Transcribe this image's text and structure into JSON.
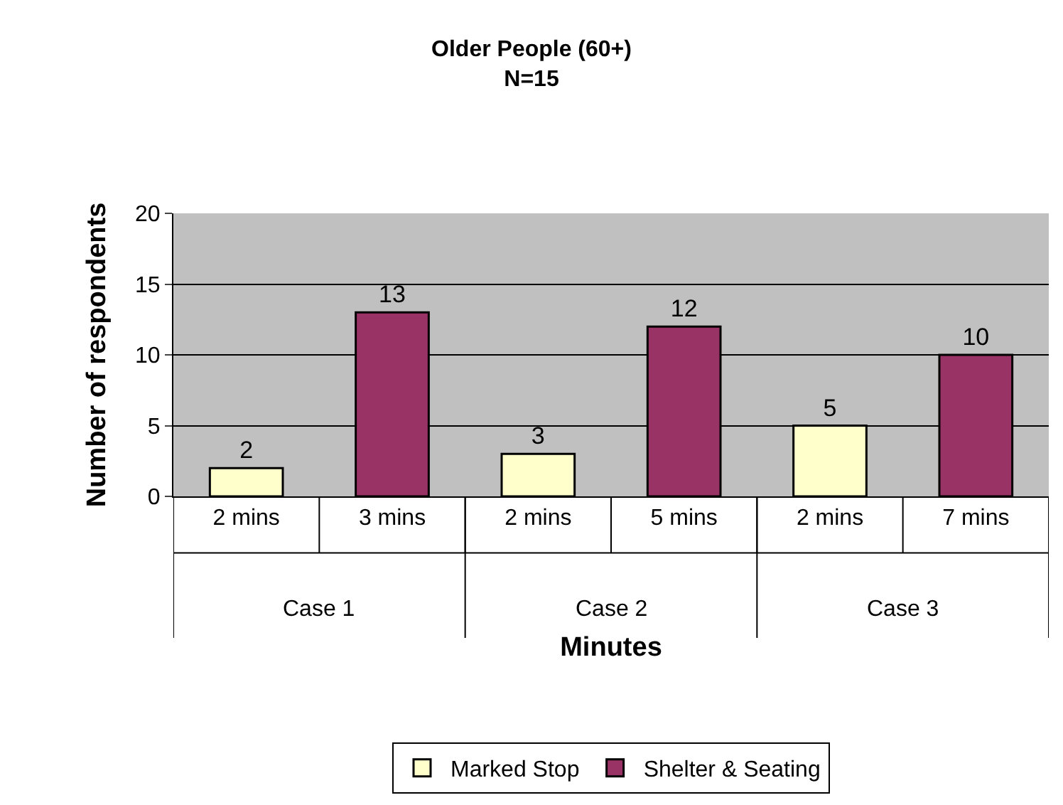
{
  "chart_data": {
    "type": "bar",
    "title": "Older People (60+)\nN=15",
    "xlabel": "Minutes",
    "ylabel": "Number of respondents",
    "categories": [
      "2 mins",
      "3 mins",
      "2 mins",
      "5 mins",
      "2 mins",
      "7 mins"
    ],
    "series": [
      {
        "name": "Marked Stop",
        "color": "#ffffcc",
        "values": [
          2,
          null,
          3,
          null,
          5,
          null
        ]
      },
      {
        "name": "Shelter & Seating",
        "color": "#993366",
        "values": [
          null,
          13,
          null,
          12,
          null,
          10
        ]
      }
    ],
    "annotations": [
      "Case 1",
      "Case 2",
      "Case 3"
    ],
    "ylim": [
      0,
      20
    ],
    "yticks": [
      0,
      5,
      10,
      15,
      20
    ],
    "grid": "y",
    "legend": "bottom",
    "data_labels": true
  }
}
